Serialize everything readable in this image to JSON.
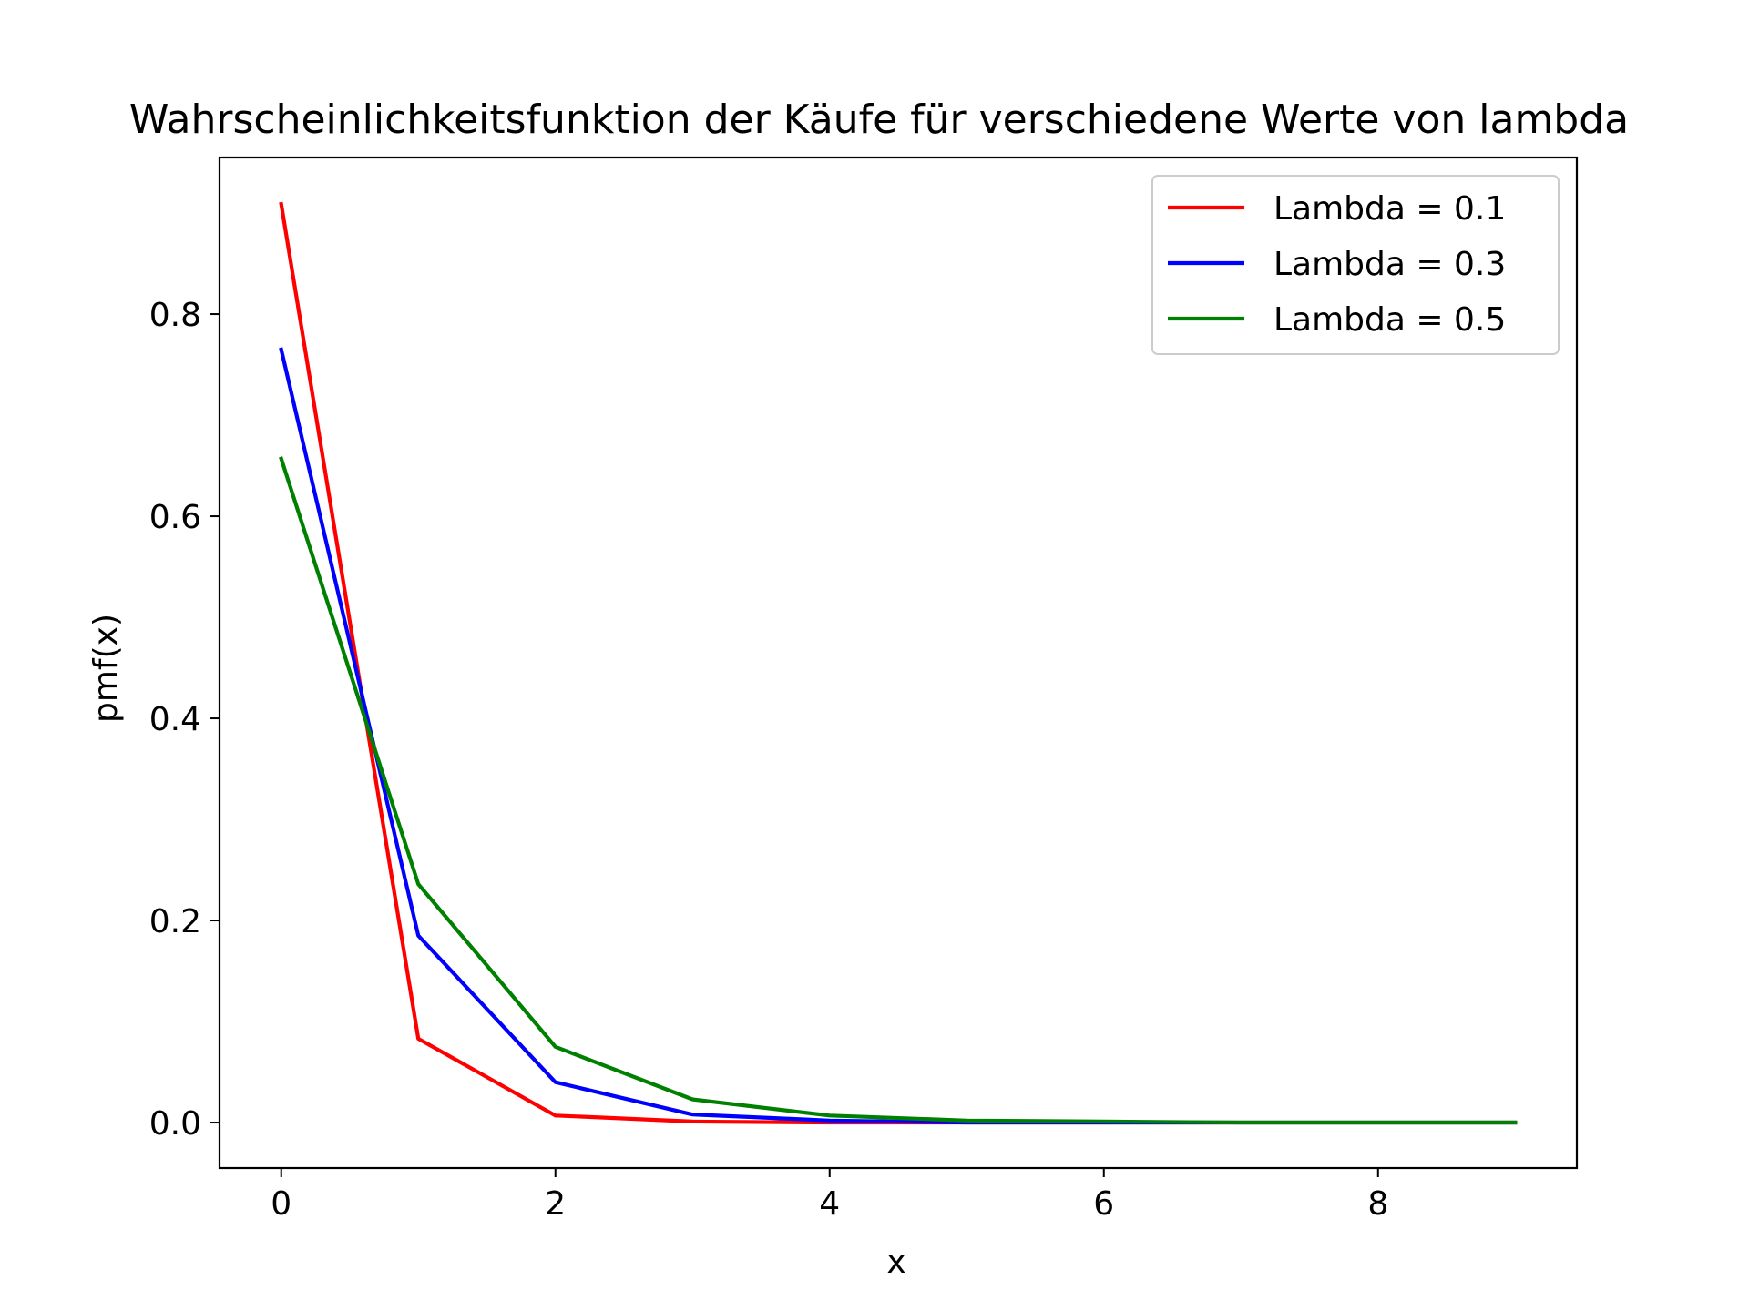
{
  "chart_data": {
    "type": "line",
    "title": "Wahrscheinlichkeitsfunktion der Käufe für verschiedene Werte von lambda",
    "xlabel": "x",
    "ylabel": "pmf(x)",
    "xlim": [
      -0.45,
      9.45
    ],
    "ylim": [
      -0.045,
      0.955
    ],
    "xticks": [
      0,
      2,
      4,
      6,
      8
    ],
    "xtick_labels": [
      "0",
      "2",
      "4",
      "6",
      "8"
    ],
    "yticks": [
      0.0,
      0.2,
      0.4,
      0.6,
      0.8
    ],
    "ytick_labels": [
      "0.0",
      "0.2",
      "0.4",
      "0.6",
      "0.8"
    ],
    "grid": false,
    "legend_position": "top-right",
    "x": [
      0,
      1,
      2,
      3,
      4,
      5,
      6,
      7,
      8,
      9
    ],
    "series": [
      {
        "name": "Lambda = 0.1",
        "color": "#ff0000",
        "values": [
          0.909,
          0.083,
          0.007,
          0.001,
          0.0,
          0.0,
          0.0,
          0.0,
          0.0,
          0.0
        ]
      },
      {
        "name": "Lambda = 0.3",
        "color": "#0000ff",
        "values": [
          0.765,
          0.185,
          0.04,
          0.008,
          0.002,
          0.0,
          0.0,
          0.0,
          0.0,
          0.0
        ]
      },
      {
        "name": "Lambda = 0.5",
        "color": "#008000",
        "values": [
          0.657,
          0.236,
          0.075,
          0.023,
          0.007,
          0.002,
          0.001,
          0.0,
          0.0,
          0.0
        ]
      }
    ]
  }
}
